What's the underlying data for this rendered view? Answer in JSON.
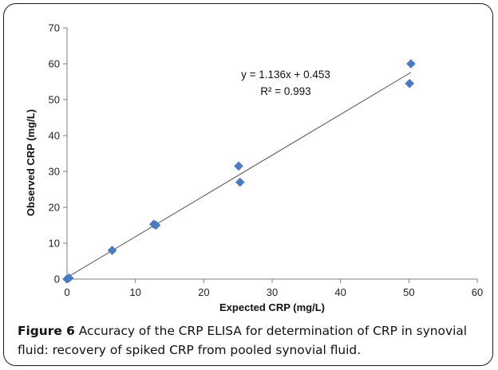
{
  "caption": {
    "label": "Figure 6",
    "text": "Accuracy of the CRP ELISA for determination of CRP in synovial fluid: recovery of spiked CRP from pooled synovial fluid."
  },
  "chart_data": {
    "type": "scatter",
    "xlabel": "Expected CRP (mg/L)",
    "ylabel": "Observed CRP (mg/L)",
    "xlim": [
      0,
      60
    ],
    "ylim": [
      0,
      70
    ],
    "x_ticks": [
      0,
      10,
      20,
      30,
      40,
      50,
      60
    ],
    "y_ticks": [
      0,
      10,
      20,
      30,
      40,
      50,
      60,
      70
    ],
    "grid": false,
    "legend": "none",
    "marker_color": "#4a7cc4",
    "series": [
      {
        "points": [
          {
            "x": 0,
            "y": 0
          },
          {
            "x": 0.3,
            "y": 0.3
          },
          {
            "x": 6.6,
            "y": 8.0
          },
          {
            "x": 12.7,
            "y": 15.3
          },
          {
            "x": 13.0,
            "y": 15.0
          },
          {
            "x": 25.1,
            "y": 31.5
          },
          {
            "x": 25.3,
            "y": 27.0
          },
          {
            "x": 50.1,
            "y": 54.5
          },
          {
            "x": 50.3,
            "y": 60.0
          }
        ]
      }
    ],
    "trendline": {
      "slope": 1.136,
      "intercept": 0.453,
      "x_range": [
        0,
        50.3
      ],
      "color": "#555555"
    },
    "annotations": {
      "equation": "y = 1.136x + 0.453",
      "r_squared": "R² = 0.993"
    }
  }
}
